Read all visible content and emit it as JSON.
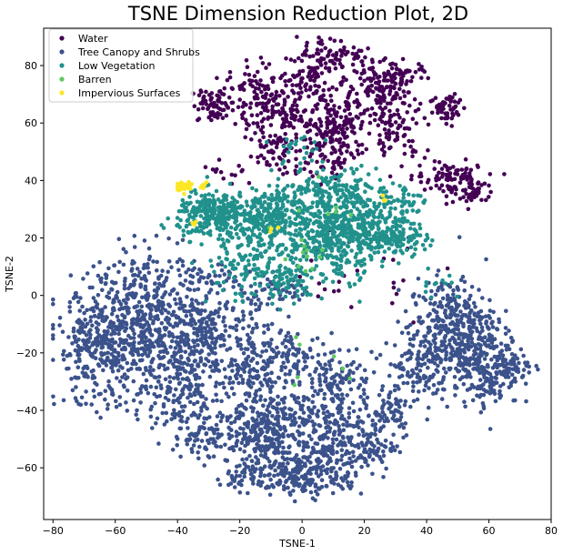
{
  "chart_data": {
    "type": "scatter",
    "title": "TSNE Dimension Reduction Plot, 2D",
    "xlabel": "TSNE-1",
    "ylabel": "TSNE-2",
    "xlim": [
      -83,
      80
    ],
    "ylim": [
      -78,
      93
    ],
    "xticks": [
      -80,
      -60,
      -40,
      -20,
      0,
      20,
      40,
      60,
      80
    ],
    "yticks": [
      -60,
      -40,
      -20,
      0,
      20,
      40,
      60,
      80
    ],
    "legend_position": "top-left",
    "grid": false,
    "series": [
      {
        "name": "Water",
        "color": "#440154",
        "clusters": [
          {
            "cx": -28,
            "cy": 66,
            "sx": 4,
            "sy": 3,
            "n": 70
          },
          {
            "cx": -12,
            "cy": 70,
            "sx": 6,
            "sy": 6,
            "n": 110
          },
          {
            "cx": -6,
            "cy": 62,
            "sx": 6,
            "sy": 6,
            "n": 110
          },
          {
            "cx": 2,
            "cy": 78,
            "sx": 3,
            "sy": 5,
            "n": 60
          },
          {
            "cx": 10,
            "cy": 60,
            "sx": 6,
            "sy": 7,
            "n": 180
          },
          {
            "cx": 12,
            "cy": 83,
            "sx": 4,
            "sy": 3,
            "n": 55
          },
          {
            "cx": 24,
            "cy": 72,
            "sx": 5,
            "sy": 5,
            "n": 110
          },
          {
            "cx": 32,
            "cy": 76,
            "sx": 4,
            "sy": 3,
            "n": 50
          },
          {
            "cx": 30,
            "cy": 58,
            "sx": 5,
            "sy": 5,
            "n": 80
          },
          {
            "cx": 47,
            "cy": 65,
            "sx": 3,
            "sy": 3,
            "n": 55
          },
          {
            "cx": 46,
            "cy": 42,
            "sx": 5,
            "sy": 3,
            "n": 70
          },
          {
            "cx": 55,
            "cy": 37,
            "sx": 4,
            "sy": 3,
            "n": 60
          },
          {
            "cx": -8,
            "cy": 48,
            "sx": 4,
            "sy": 4,
            "n": 40
          },
          {
            "cx": 10,
            "cy": 47,
            "sx": 5,
            "sy": 3,
            "n": 45
          },
          {
            "cx": -22,
            "cy": 42,
            "sx": 3,
            "sy": 3,
            "n": 15
          },
          {
            "cx": 14,
            "cy": 10,
            "sx": 12,
            "sy": 8,
            "n": 30
          }
        ]
      },
      {
        "name": "Tree Canopy and Shrubs",
        "color": "#3b528b",
        "clusters": [
          {
            "cx": -65,
            "cy": -18,
            "sx": 7,
            "sy": 10,
            "n": 350
          },
          {
            "cx": -50,
            "cy": -5,
            "sx": 8,
            "sy": 10,
            "n": 350
          },
          {
            "cx": -42,
            "cy": -28,
            "sx": 8,
            "sy": 9,
            "n": 250
          },
          {
            "cx": -30,
            "cy": -12,
            "sx": 8,
            "sy": 8,
            "n": 250
          },
          {
            "cx": -30,
            "cy": -48,
            "sx": 6,
            "sy": 5,
            "n": 100
          },
          {
            "cx": -15,
            "cy": -30,
            "sx": 7,
            "sy": 10,
            "n": 200
          },
          {
            "cx": -12,
            "cy": -48,
            "sx": 5,
            "sy": 5,
            "n": 180
          },
          {
            "cx": -20,
            "cy": -62,
            "sx": 3,
            "sy": 3,
            "n": 40
          },
          {
            "cx": 0,
            "cy": -62,
            "sx": 8,
            "sy": 4,
            "n": 250
          },
          {
            "cx": 5,
            "cy": -45,
            "sx": 7,
            "sy": 8,
            "n": 180
          },
          {
            "cx": 18,
            "cy": -52,
            "sx": 6,
            "sy": 6,
            "n": 150
          },
          {
            "cx": 28,
            "cy": -40,
            "sx": 4,
            "sy": 5,
            "n": 60
          },
          {
            "cx": -2,
            "cy": -22,
            "sx": 5,
            "sy": 5,
            "n": 70
          },
          {
            "cx": 12,
            "cy": -28,
            "sx": 5,
            "sy": 6,
            "n": 80
          },
          {
            "cx": 48,
            "cy": -12,
            "sx": 7,
            "sy": 9,
            "n": 380
          },
          {
            "cx": 60,
            "cy": -25,
            "sx": 5,
            "sy": 7,
            "n": 200
          },
          {
            "cx": 37,
            "cy": -25,
            "sx": 5,
            "sy": 6,
            "n": 120
          },
          {
            "cx": 68,
            "cy": -24,
            "sx": 3,
            "sy": 3,
            "n": 40
          },
          {
            "cx": -8,
            "cy": 2,
            "sx": 6,
            "sy": 3,
            "n": 40
          },
          {
            "cx": -30,
            "cy": 5,
            "sx": 5,
            "sy": 3,
            "n": 40
          }
        ]
      },
      {
        "name": "Low Vegetation",
        "color": "#21918c",
        "clusters": [
          {
            "cx": -28,
            "cy": 28,
            "sx": 6,
            "sy": 4,
            "n": 300
          },
          {
            "cx": -12,
            "cy": 27,
            "sx": 5,
            "sy": 4,
            "n": 200
          },
          {
            "cx": -2,
            "cy": 22,
            "sx": 8,
            "sy": 8,
            "n": 200
          },
          {
            "cx": 12,
            "cy": 20,
            "sx": 6,
            "sy": 7,
            "n": 250
          },
          {
            "cx": 18,
            "cy": 25,
            "sx": 6,
            "sy": 5,
            "n": 150
          },
          {
            "cx": 30,
            "cy": 20,
            "sx": 5,
            "sy": 3,
            "n": 120
          },
          {
            "cx": 30,
            "cy": 32,
            "sx": 5,
            "sy": 4,
            "n": 70
          },
          {
            "cx": 5,
            "cy": 35,
            "sx": 10,
            "sy": 3,
            "n": 120
          },
          {
            "cx": -18,
            "cy": 10,
            "sx": 8,
            "sy": 5,
            "n": 100
          },
          {
            "cx": -5,
            "cy": 5,
            "sx": 6,
            "sy": 3,
            "n": 70
          },
          {
            "cx": 0,
            "cy": 50,
            "sx": 6,
            "sy": 4,
            "n": 25
          },
          {
            "cx": 15,
            "cy": 40,
            "sx": 6,
            "sy": 3,
            "n": 40
          },
          {
            "cx": 42,
            "cy": 5,
            "sx": 4,
            "sy": 3,
            "n": 12
          }
        ]
      },
      {
        "name": "Barren",
        "color": "#5ec962",
        "clusters": [
          {
            "cx": 0,
            "cy": 15,
            "sx": 5,
            "sy": 4,
            "n": 12
          },
          {
            "cx": 12,
            "cy": 30,
            "sx": 6,
            "sy": 4,
            "n": 6
          },
          {
            "cx": 10,
            "cy": -24,
            "sx": 3,
            "sy": 3,
            "n": 3
          },
          {
            "cx": -5,
            "cy": -20,
            "sx": 6,
            "sy": 6,
            "n": 4
          }
        ]
      },
      {
        "name": "Impervious Surfaces",
        "color": "#fde725",
        "clusters": [
          {
            "cx": -38,
            "cy": 38,
            "sx": 1.2,
            "sy": 0.8,
            "n": 35
          },
          {
            "cx": -32,
            "cy": 38,
            "sx": 1,
            "sy": 0.8,
            "n": 6
          },
          {
            "cx": -35,
            "cy": 25,
            "sx": 1,
            "sy": 1,
            "n": 3
          },
          {
            "cx": 27,
            "cy": 34,
            "sx": 1,
            "sy": 1,
            "n": 4
          },
          {
            "cx": -8,
            "cy": 23,
            "sx": 1,
            "sy": 1,
            "n": 3
          }
        ]
      }
    ]
  }
}
